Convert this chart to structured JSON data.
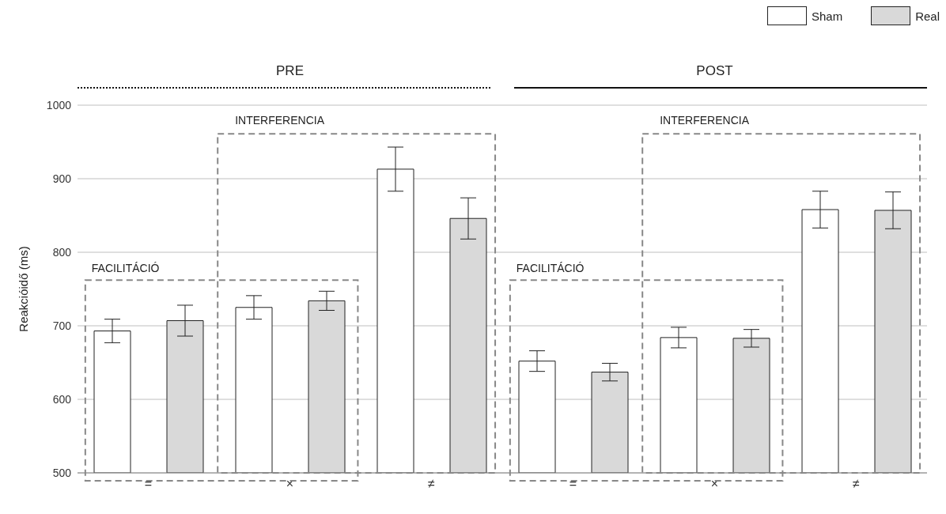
{
  "chart_data": {
    "type": "bar",
    "ylabel": "Reakcióidő (ms)",
    "categories": [
      "=",
      "×",
      "≠",
      "=",
      "×",
      "≠"
    ],
    "series": [
      {
        "name": "Sham",
        "color": "#ffffff",
        "values": [
          693,
          725,
          913,
          652,
          684,
          858
        ],
        "errors": [
          16,
          16,
          30,
          14,
          14,
          25
        ]
      },
      {
        "name": "Real",
        "color": "#d9d9d9",
        "values": [
          707,
          734,
          846,
          637,
          683,
          857
        ],
        "errors": [
          21,
          13,
          28,
          12,
          12,
          25
        ]
      }
    ],
    "ylim": [
      500,
      1000
    ],
    "yticks": [
      500,
      600,
      700,
      800,
      900,
      1000
    ],
    "grid": "y",
    "legend": "top right",
    "annotations": [
      "PRE",
      "POST",
      "FACILITÁCIÓ",
      "INTERFERENCIA",
      "FACILITÁCIÓ",
      "INTERFERENCIA"
    ]
  }
}
